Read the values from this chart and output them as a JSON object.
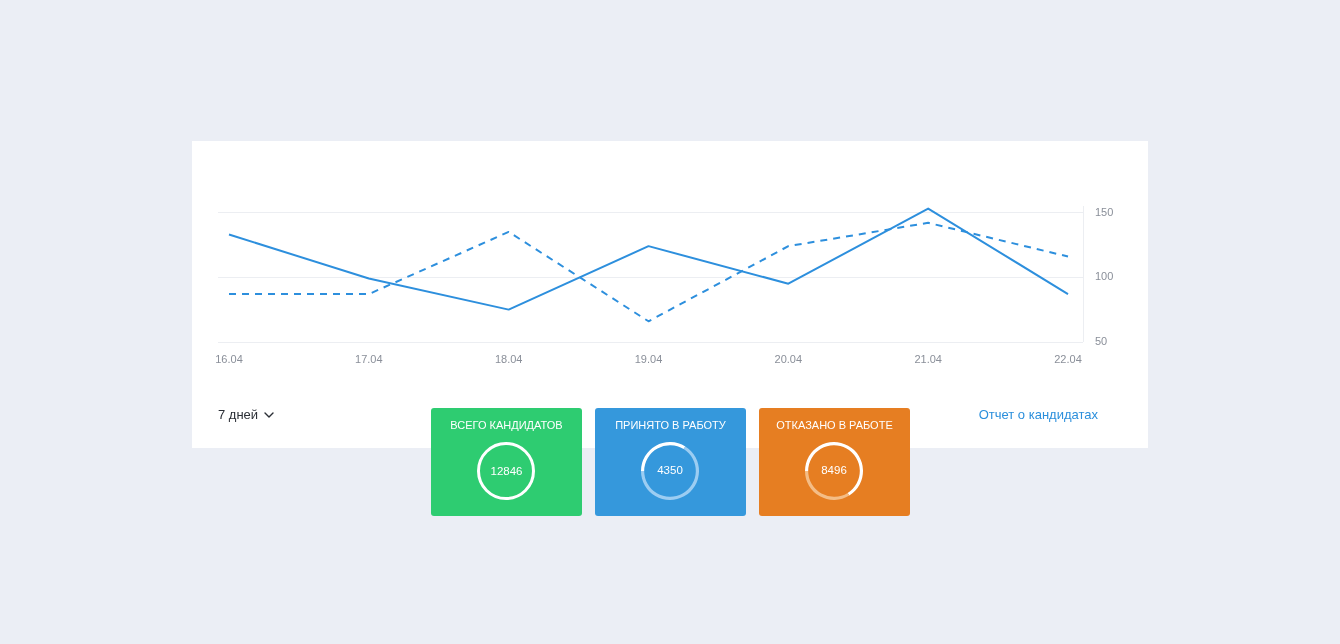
{
  "chart_data": [
    {
      "type": "line",
      "categories": [
        "16.04",
        "17.04",
        "18.04",
        "19.04",
        "20.04",
        "21.04",
        "22.04"
      ],
      "series": [
        {
          "color": "#2d8fdd",
          "line_style": "solid",
          "values": [
            133,
            99,
            75,
            124,
            95,
            153,
            87
          ]
        },
        {
          "color": "#2d8fdd",
          "line_style": "dashed",
          "values": [
            87,
            87,
            135,
            66,
            124,
            142,
            116
          ]
        }
      ],
      "ylim": [
        50,
        155
      ],
      "yticks": [
        50,
        100,
        150
      ],
      "grid": "y",
      "annotations": [
        "7 дней",
        "Отчет о кандидатах"
      ]
    },
    {
      "type": "other",
      "title": "ВСЕГО КАНДИДАТОВ",
      "annotations": [
        "12846"
      ]
    },
    {
      "type": "donut",
      "title": "ПРИНЯТО В РАБОТУ",
      "categories": [
        null,
        null
      ],
      "values": [
        4350,
        8496
      ],
      "colors": [
        "#ffffff",
        "#9ccdf2"
      ],
      "value_labels": [
        "4350",
        null
      ]
    },
    {
      "type": "donut",
      "title": "ОТКАЗАНО В РАБОТЕ",
      "categories": [
        null,
        null
      ],
      "values": [
        8496,
        4350
      ],
      "colors": [
        "#ffffff",
        "#f4bd86"
      ],
      "value_labels": [
        "8496",
        null
      ]
    }
  ]
}
